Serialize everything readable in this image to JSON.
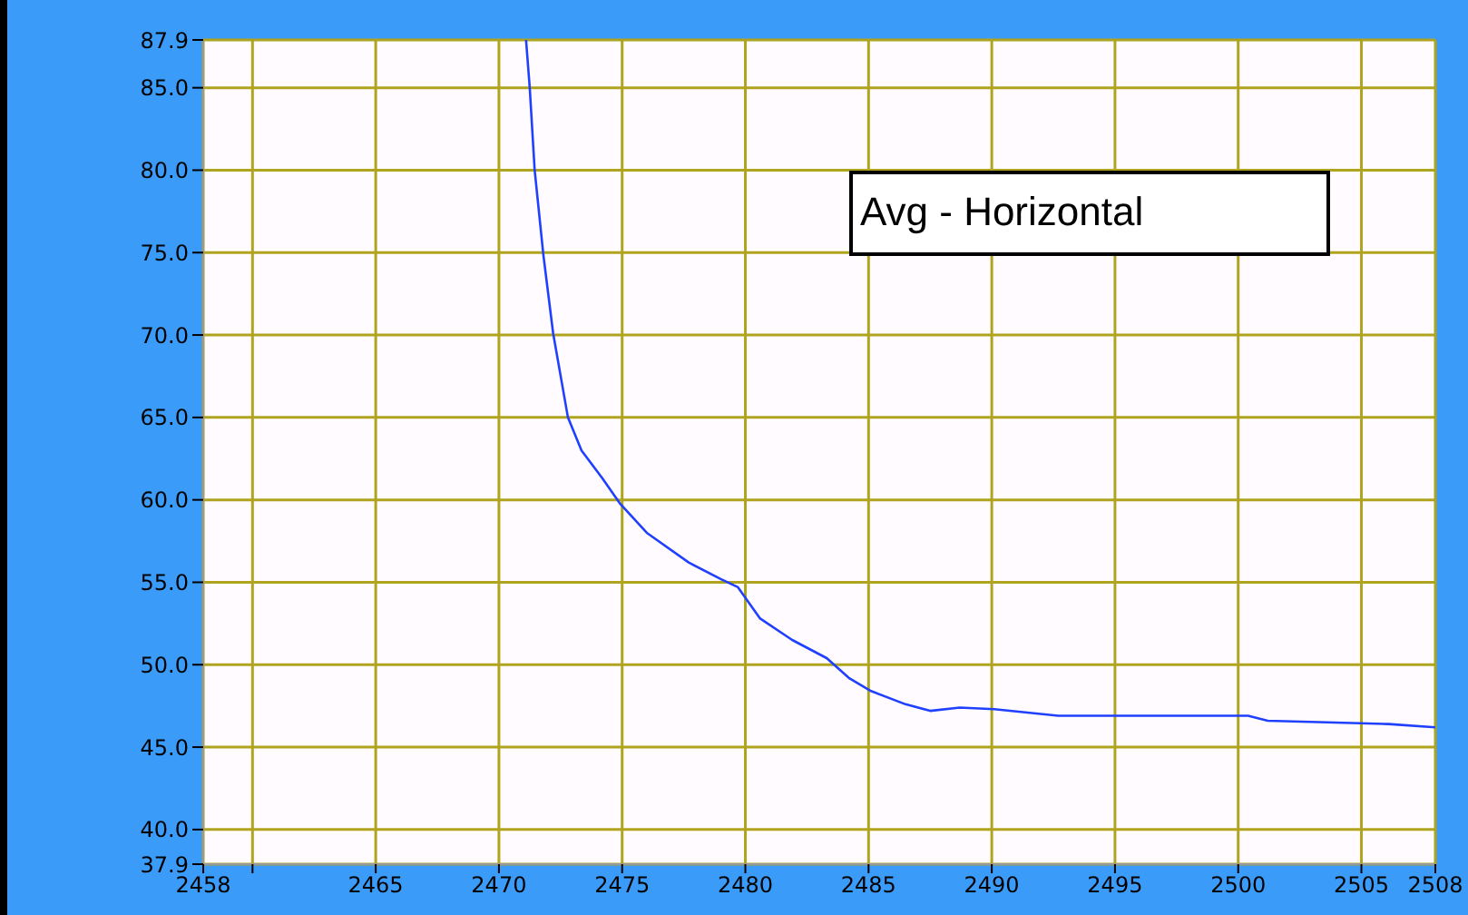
{
  "chart_data": {
    "type": "line",
    "x": [
      2471.1,
      2471.25,
      2471.45,
      2471.8,
      2472.2,
      2472.8,
      2473.35,
      2474.2,
      2474.9,
      2476.0,
      2477.7,
      2479.0,
      2479.7,
      2480.6,
      2481.9,
      2483.3,
      2484.2,
      2485.1,
      2486.5,
      2487.5,
      2488.7,
      2490.1,
      2492.7,
      2494.9,
      2499.5,
      2500.4,
      2501.2,
      2503.6,
      2506.1,
      2508
    ],
    "series": [
      {
        "color": "#2040ff",
        "values": [
          87.9,
          85.0,
          80.0,
          74.9,
          70.1,
          65.0,
          63.0,
          61.3,
          59.8,
          58.0,
          56.2,
          55.2,
          54.7,
          52.8,
          51.5,
          50.4,
          49.2,
          48.4,
          47.6,
          47.2,
          47.4,
          47.3,
          46.9,
          46.9,
          46.9,
          46.9,
          46.6,
          46.5,
          46.4,
          46.2
        ]
      }
    ],
    "xlim": [
      2458,
      2508
    ],
    "xticks": [
      2458,
      {
        "value": 2460,
        "label": null
      },
      2465,
      2470,
      2475,
      2480,
      2485,
      2490,
      2495,
      2500,
      2505,
      2508
    ],
    "ylim": [
      37.9,
      87.9
    ],
    "yticks": [
      {
        "value": 37.9,
        "label": "37.9"
      },
      {
        "value": 40,
        "label": "40.0"
      },
      {
        "value": 45,
        "label": "45.0"
      },
      {
        "value": 50,
        "label": "50.0"
      },
      {
        "value": 55,
        "label": "55.0"
      },
      {
        "value": 60,
        "label": "60.0"
      },
      {
        "value": 65,
        "label": "65.0"
      },
      {
        "value": 70,
        "label": "70.0"
      },
      {
        "value": 75,
        "label": "75.0"
      },
      {
        "value": 80,
        "label": "80.0"
      },
      {
        "value": 85,
        "label": "85.0"
      },
      {
        "value": 87.9,
        "label": "87.9"
      }
    ],
    "grid": true,
    "marker": "none",
    "line_style": "solid",
    "annotations": [
      "Avg - Horizontal"
    ]
  }
}
